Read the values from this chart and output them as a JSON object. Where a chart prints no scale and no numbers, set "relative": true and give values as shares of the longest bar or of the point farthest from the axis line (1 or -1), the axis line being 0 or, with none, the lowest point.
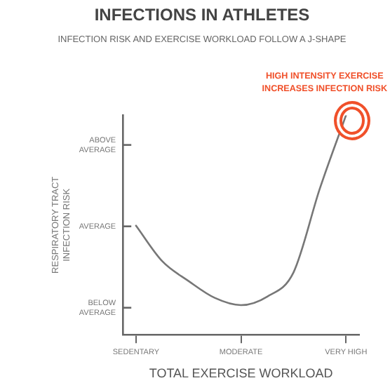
{
  "chart_data": {
    "type": "line",
    "relative": true,
    "title": "INFECTIONS IN ATHLETES",
    "subtitle": "INFECTION RISK AND EXERCISE WORKLOAD FOLLOW A J-SHAPE",
    "xlabel": "TOTAL EXERCISE WORKLOAD",
    "ylabel": "RESPIRATORY TRACT INFECTION RISK",
    "categories": [
      "SEDENTARY",
      null,
      null,
      null,
      "MODERATE",
      null,
      null,
      null,
      "VERY HIGH"
    ],
    "series": [
      {
        "color": "#777777",
        "values": [
          0.497,
          0.335,
          0.245,
          0.168,
          0.135,
          0.174,
          0.284,
          0.665,
          1.0
        ]
      }
    ],
    "grid": false,
    "legend": false,
    "marker": "none",
    "line_style": "solid",
    "annotations": [
      "ABOVE AVERAGE",
      "AVERAGE",
      "BELOW AVERAGE",
      {
        "text": "HIGH INTENSITY EXERCISE INCREASES INFECTION RISK",
        "x": "VERY HIGH",
        "y": 1.0
      }
    ]
  }
}
